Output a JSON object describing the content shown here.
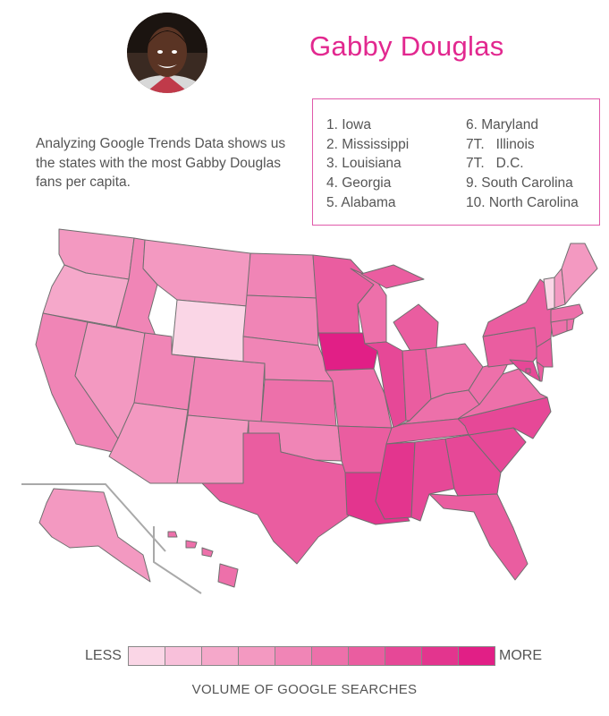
{
  "header": {
    "title": "Gabby Douglas",
    "intro": "Analyzing Google Trends Data shows us the states with the most Gabby Douglas fans per capita."
  },
  "rankings": {
    "left": [
      "1. Iowa",
      "2. Mississippi",
      "3. Louisiana",
      "4. Georgia",
      "5. Alabama"
    ],
    "right": [
      "6. Maryland",
      "7T.   Illinois",
      "7T.   D.C.",
      "9. South Carolina",
      "10. North Carolina"
    ]
  },
  "legend": {
    "less_label": "LESS",
    "more_label": "MORE",
    "caption": "VOLUME OF GOOGLE SEARCHES",
    "colors": [
      "#fad6e6",
      "#f8c0da",
      "#f5a8ca",
      "#f399c1",
      "#f085b6",
      "#ed70aa",
      "#ea5da0",
      "#e64897",
      "#e3358e",
      "#e11f86"
    ]
  },
  "map_data": {
    "scale_levels": 10,
    "state_levels": {
      "WA": 3,
      "OR": 2,
      "CA": 4,
      "NV": 3,
      "ID": 4,
      "MT": 3,
      "WY": 0,
      "UT": 4,
      "AZ": 3,
      "CO": 4,
      "NM": 3,
      "ND": 4,
      "SD": 4,
      "NE": 4,
      "KS": 5,
      "OK": 4,
      "TX": 6,
      "MN": 6,
      "IA": 9,
      "MO": 5,
      "AR": 6,
      "LA": 8,
      "WI": 5,
      "IL": 7,
      "MI": 6,
      "IN": 6,
      "OH": 5,
      "KY": 5,
      "TN": 6,
      "MS": 8,
      "AL": 7,
      "GA": 7,
      "FL": 6,
      "SC": 7,
      "NC": 7,
      "VA": 5,
      "WV": 5,
      "PA": 6,
      "NY": 6,
      "MD": 7,
      "DE": 6,
      "NJ": 6,
      "CT": 5,
      "RI": 5,
      "MA": 5,
      "VT": 0,
      "NH": 3,
      "ME": 3,
      "DC": 7,
      "AK": 3,
      "HI": 5
    }
  }
}
